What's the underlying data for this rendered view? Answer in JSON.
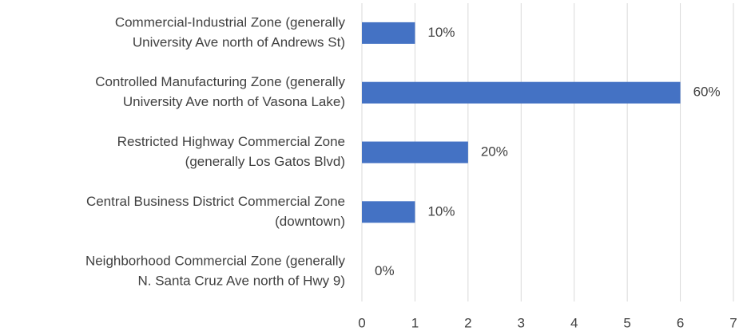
{
  "chart_data": {
    "type": "hbar",
    "categories": [
      [
        "Commercial-Industrial Zone (generally",
        "University Ave north of Andrews St)"
      ],
      [
        "Controlled Manufacturing Zone (generally",
        "University Ave north of Vasona Lake)"
      ],
      [
        "Restricted Highway Commercial Zone",
        "(generally Los Gatos Blvd)"
      ],
      [
        "Central Business District Commercial Zone",
        "(downtown)"
      ],
      [
        "Neighborhood Commercial Zone (generally",
        "N. Santa Cruz Ave north of Hwy 9)"
      ]
    ],
    "values": [
      1,
      6,
      2,
      1,
      0
    ],
    "value_labels": [
      "10%",
      "60%",
      "20%",
      "10%",
      "0%"
    ],
    "color": "#4472c4",
    "xlim": [
      0,
      7
    ],
    "xticks": [
      0,
      1,
      2,
      3,
      4,
      5,
      6,
      7
    ],
    "grid": true
  }
}
